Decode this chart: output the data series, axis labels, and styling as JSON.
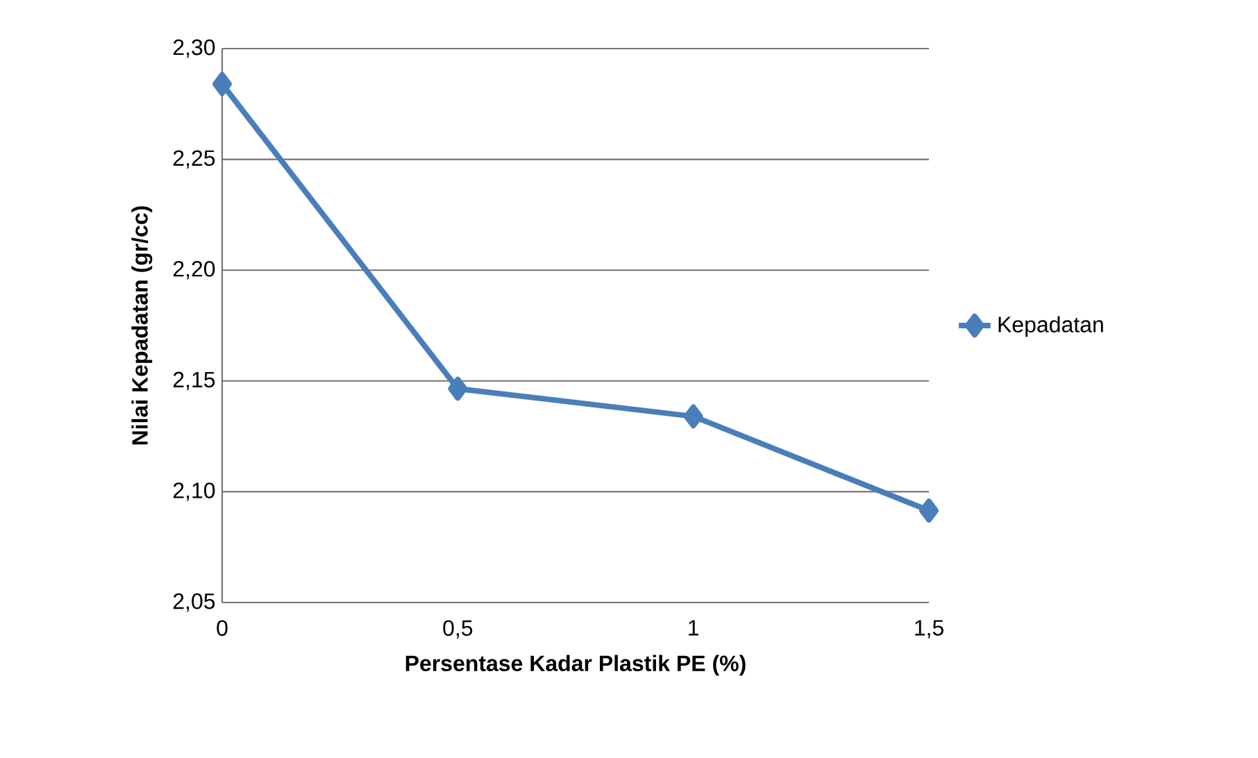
{
  "chart_data": {
    "type": "line",
    "xlabel": "Persentase Kadar Plastik PE (%)",
    "ylabel": "Nilai Kepadatan (gr/cc)",
    "categories": [
      "0",
      "0,5",
      "1",
      "1,5"
    ],
    "series": [
      {
        "name": "Kepadatan",
        "color": "#4a7ebb",
        "values": [
          2.284,
          2.1465,
          2.134,
          2.0915
        ]
      }
    ],
    "ylim": [
      2.05,
      2.3
    ],
    "yticks": [
      {
        "value": 2.05,
        "label": "2,05"
      },
      {
        "value": 2.1,
        "label": "2,10"
      },
      {
        "value": 2.15,
        "label": "2,15"
      },
      {
        "value": 2.2,
        "label": "2,20"
      },
      {
        "value": 2.25,
        "label": "2,25"
      },
      {
        "value": 2.3,
        "label": "2,30"
      }
    ],
    "grid": "y",
    "legend": "right",
    "marker": "diamond",
    "line_style": "solid"
  }
}
